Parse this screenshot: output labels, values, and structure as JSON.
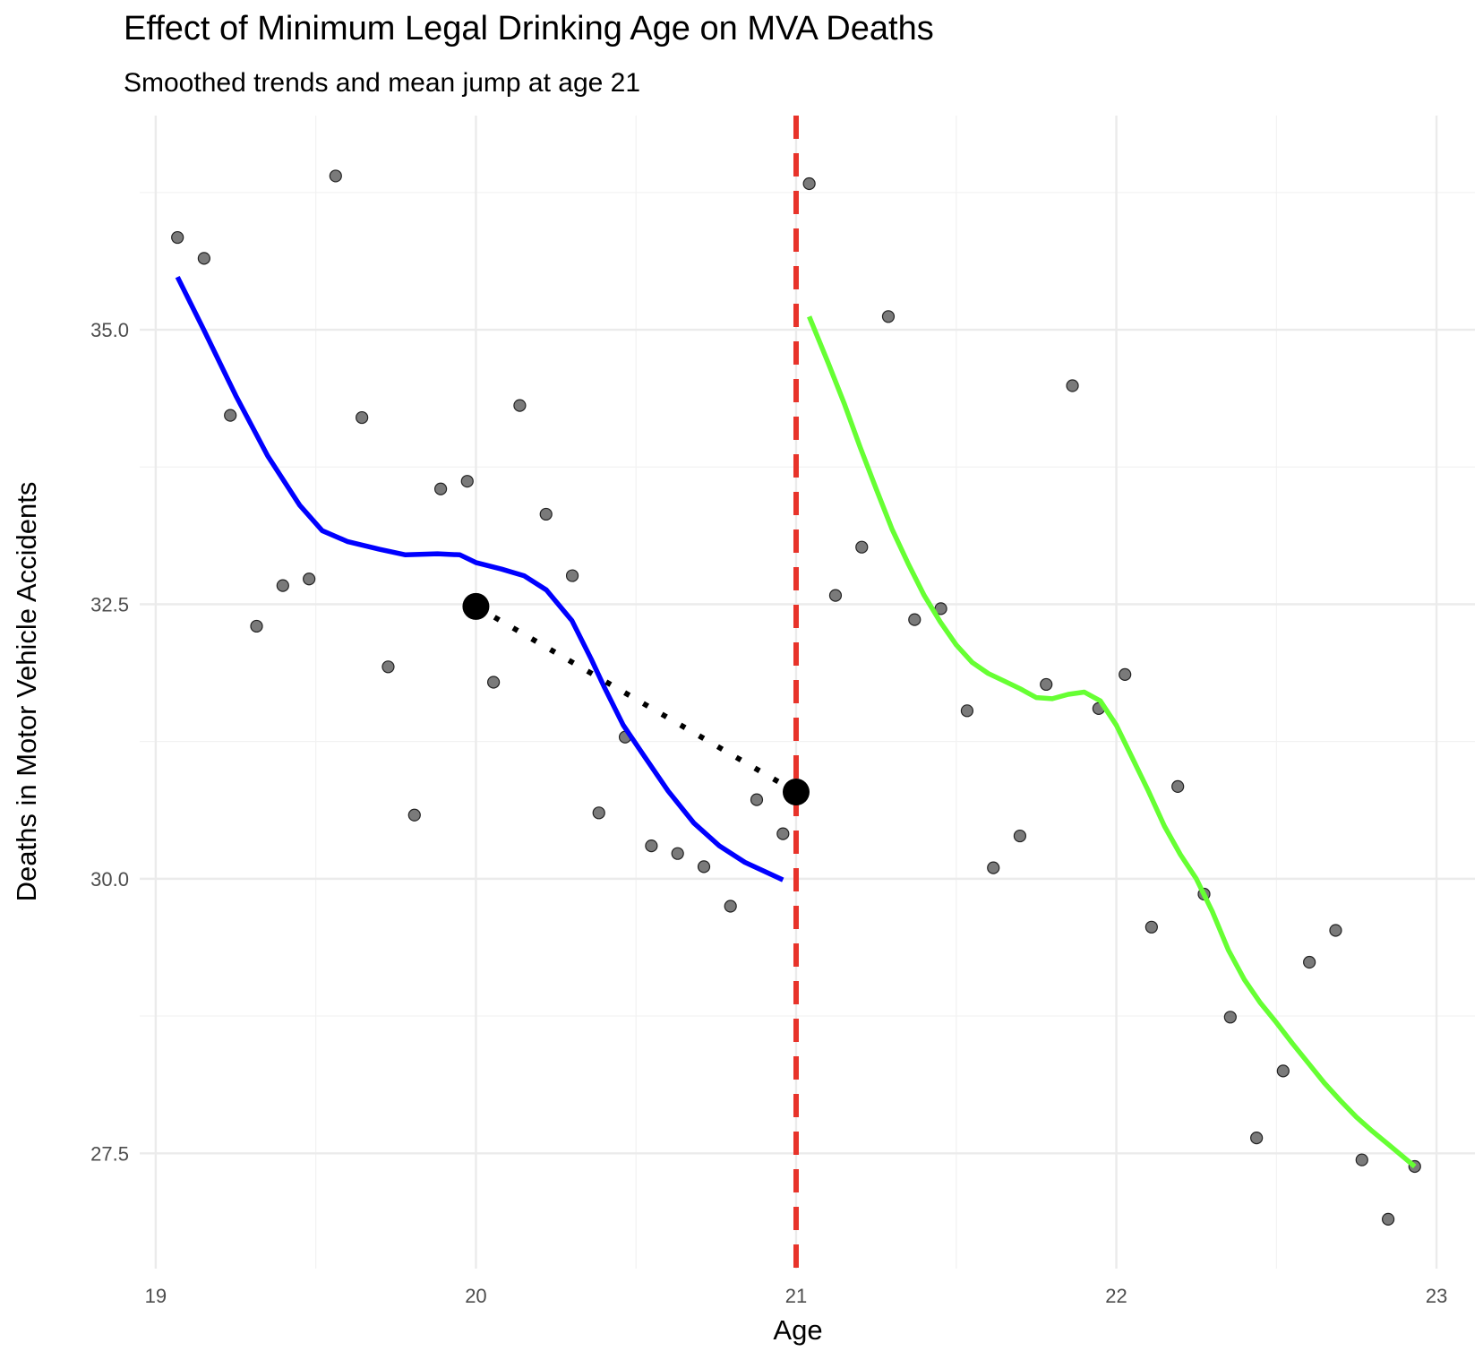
{
  "chart_data": {
    "type": "scatter",
    "title": "Effect of Minimum Legal Drinking Age on MVA Deaths",
    "subtitle": "Smoothed trends and mean jump at age 21",
    "xlabel": "Age",
    "ylabel": "Deaths in Motor Vehicle Accidents",
    "xlim": [
      18.95,
      23.12
    ],
    "ylim": [
      26.45,
      36.95
    ],
    "x_ticks": [
      19,
      20,
      21,
      22,
      23
    ],
    "x_tick_labels": [
      "19",
      "20",
      "21",
      "22",
      "23"
    ],
    "y_ticks": [
      27.5,
      30.0,
      32.5,
      35.0
    ],
    "y_tick_labels": [
      "27.5",
      "30.0",
      "32.5",
      "35.0"
    ],
    "grid": true,
    "legend": "none",
    "colors": {
      "points": "#555555",
      "left_smooth": "#0000ff",
      "right_smooth": "#66ff33",
      "cutoff": "#e8332a",
      "means": "#000000"
    },
    "cutoff_x": 21,
    "points": [
      {
        "x": 19.068,
        "y": 35.84
      },
      {
        "x": 19.151,
        "y": 35.65
      },
      {
        "x": 19.233,
        "y": 34.22
      },
      {
        "x": 19.315,
        "y": 32.3
      },
      {
        "x": 19.397,
        "y": 32.67
      },
      {
        "x": 19.479,
        "y": 32.73
      },
      {
        "x": 19.562,
        "y": 36.4
      },
      {
        "x": 19.644,
        "y": 34.2
      },
      {
        "x": 19.726,
        "y": 31.93
      },
      {
        "x": 19.808,
        "y": 30.58
      },
      {
        "x": 19.89,
        "y": 33.55
      },
      {
        "x": 19.973,
        "y": 33.62
      },
      {
        "x": 20.055,
        "y": 31.79
      },
      {
        "x": 20.137,
        "y": 34.31
      },
      {
        "x": 20.219,
        "y": 33.32
      },
      {
        "x": 20.301,
        "y": 32.76
      },
      {
        "x": 20.384,
        "y": 30.6
      },
      {
        "x": 20.466,
        "y": 31.29
      },
      {
        "x": 20.548,
        "y": 30.3
      },
      {
        "x": 20.63,
        "y": 30.23
      },
      {
        "x": 20.712,
        "y": 30.11
      },
      {
        "x": 20.795,
        "y": 29.75
      },
      {
        "x": 20.877,
        "y": 30.72
      },
      {
        "x": 20.959,
        "y": 30.41
      },
      {
        "x": 21.041,
        "y": 36.33
      },
      {
        "x": 21.123,
        "y": 32.58
      },
      {
        "x": 21.205,
        "y": 33.02
      },
      {
        "x": 21.288,
        "y": 35.12
      },
      {
        "x": 21.37,
        "y": 32.36
      },
      {
        "x": 21.452,
        "y": 32.46
      },
      {
        "x": 21.534,
        "y": 31.53
      },
      {
        "x": 21.616,
        "y": 30.1
      },
      {
        "x": 21.699,
        "y": 30.39
      },
      {
        "x": 21.781,
        "y": 31.77
      },
      {
        "x": 21.863,
        "y": 34.49
      },
      {
        "x": 21.945,
        "y": 31.55
      },
      {
        "x": 22.027,
        "y": 31.86
      },
      {
        "x": 22.11,
        "y": 29.56
      },
      {
        "x": 22.192,
        "y": 30.84
      },
      {
        "x": 22.274,
        "y": 29.86
      },
      {
        "x": 22.356,
        "y": 28.74
      },
      {
        "x": 22.438,
        "y": 27.64
      },
      {
        "x": 22.521,
        "y": 28.25
      },
      {
        "x": 22.603,
        "y": 29.24
      },
      {
        "x": 22.685,
        "y": 29.53
      },
      {
        "x": 22.767,
        "y": 27.44
      },
      {
        "x": 22.849,
        "y": 26.9
      },
      {
        "x": 22.932,
        "y": 27.38
      }
    ],
    "left_smooth": [
      {
        "x": 19.068,
        "y": 35.48
      },
      {
        "x": 19.15,
        "y": 35.0
      },
      {
        "x": 19.25,
        "y": 34.4
      },
      {
        "x": 19.35,
        "y": 33.85
      },
      {
        "x": 19.45,
        "y": 33.4
      },
      {
        "x": 19.52,
        "y": 33.17
      },
      {
        "x": 19.6,
        "y": 33.07
      },
      {
        "x": 19.7,
        "y": 33.0
      },
      {
        "x": 19.78,
        "y": 32.95
      },
      {
        "x": 19.88,
        "y": 32.96
      },
      {
        "x": 19.95,
        "y": 32.95
      },
      {
        "x": 20.0,
        "y": 32.88
      },
      {
        "x": 20.08,
        "y": 32.82
      },
      {
        "x": 20.15,
        "y": 32.76
      },
      {
        "x": 20.22,
        "y": 32.63
      },
      {
        "x": 20.3,
        "y": 32.35
      },
      {
        "x": 20.36,
        "y": 32.0
      },
      {
        "x": 20.4,
        "y": 31.75
      },
      {
        "x": 20.46,
        "y": 31.4
      },
      {
        "x": 20.52,
        "y": 31.14
      },
      {
        "x": 20.6,
        "y": 30.8
      },
      {
        "x": 20.68,
        "y": 30.51
      },
      {
        "x": 20.76,
        "y": 30.3
      },
      {
        "x": 20.84,
        "y": 30.15
      },
      {
        "x": 20.959,
        "y": 29.99
      }
    ],
    "right_smooth": [
      {
        "x": 21.041,
        "y": 35.12
      },
      {
        "x": 21.1,
        "y": 34.7
      },
      {
        "x": 21.15,
        "y": 34.33
      },
      {
        "x": 21.2,
        "y": 33.93
      },
      {
        "x": 21.25,
        "y": 33.55
      },
      {
        "x": 21.3,
        "y": 33.18
      },
      {
        "x": 21.35,
        "y": 32.87
      },
      {
        "x": 21.4,
        "y": 32.58
      },
      {
        "x": 21.45,
        "y": 32.34
      },
      {
        "x": 21.5,
        "y": 32.13
      },
      {
        "x": 21.55,
        "y": 31.97
      },
      {
        "x": 21.6,
        "y": 31.87
      },
      {
        "x": 21.65,
        "y": 31.8
      },
      {
        "x": 21.7,
        "y": 31.73
      },
      {
        "x": 21.75,
        "y": 31.65
      },
      {
        "x": 21.8,
        "y": 31.64
      },
      {
        "x": 21.85,
        "y": 31.68
      },
      {
        "x": 21.9,
        "y": 31.7
      },
      {
        "x": 21.95,
        "y": 31.62
      },
      {
        "x": 22.0,
        "y": 31.4
      },
      {
        "x": 22.05,
        "y": 31.1
      },
      {
        "x": 22.1,
        "y": 30.8
      },
      {
        "x": 22.15,
        "y": 30.48
      },
      {
        "x": 22.2,
        "y": 30.22
      },
      {
        "x": 22.25,
        "y": 30.0
      },
      {
        "x": 22.3,
        "y": 29.7
      },
      {
        "x": 22.35,
        "y": 29.35
      },
      {
        "x": 22.4,
        "y": 29.08
      },
      {
        "x": 22.45,
        "y": 28.87
      },
      {
        "x": 22.5,
        "y": 28.69
      },
      {
        "x": 22.55,
        "y": 28.5
      },
      {
        "x": 22.6,
        "y": 28.32
      },
      {
        "x": 22.65,
        "y": 28.14
      },
      {
        "x": 22.7,
        "y": 27.98
      },
      {
        "x": 22.75,
        "y": 27.83
      },
      {
        "x": 22.8,
        "y": 27.7
      },
      {
        "x": 22.85,
        "y": 27.58
      },
      {
        "x": 22.932,
        "y": 27.38
      }
    ],
    "mean_points": [
      {
        "x": 20.0,
        "y": 32.48
      },
      {
        "x": 21.0,
        "y": 30.79
      }
    ]
  }
}
